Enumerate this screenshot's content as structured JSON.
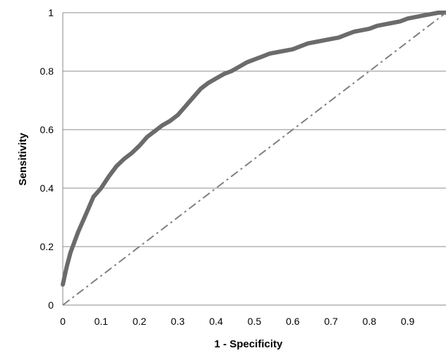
{
  "chart_data": {
    "type": "line",
    "title": "",
    "xlabel": "1 - Specificity",
    "ylabel": "Sensitivity",
    "xlim": [
      0,
      1
    ],
    "ylim": [
      0,
      1
    ],
    "x_ticks": [
      "0",
      "0.1",
      "0.2",
      "0.3",
      "0.4",
      "0.5",
      "0.6",
      "0.7",
      "0.8",
      "0.9"
    ],
    "y_ticks": [
      "0",
      "0.2",
      "0.4",
      "0.6",
      "0.8",
      "1"
    ],
    "grid": "horizontal",
    "legend": "none",
    "series": [
      {
        "style": "solid",
        "color": "#6b6b6b",
        "x": [
          0,
          0.01,
          0.02,
          0.04,
          0.06,
          0.08,
          0.1,
          0.12,
          0.14,
          0.16,
          0.18,
          0.2,
          0.22,
          0.24,
          0.26,
          0.28,
          0.3,
          0.32,
          0.34,
          0.36,
          0.38,
          0.4,
          0.42,
          0.44,
          0.46,
          0.48,
          0.5,
          0.52,
          0.54,
          0.56,
          0.6,
          0.62,
          0.64,
          0.66,
          0.7,
          0.72,
          0.74,
          0.76,
          0.78,
          0.8,
          0.82,
          0.84,
          0.86,
          0.88,
          0.9,
          0.92,
          0.94,
          0.96,
          0.98,
          1.0
        ],
        "y": [
          0.07,
          0.13,
          0.18,
          0.25,
          0.31,
          0.37,
          0.4,
          0.44,
          0.475,
          0.5,
          0.52,
          0.545,
          0.575,
          0.595,
          0.615,
          0.63,
          0.65,
          0.68,
          0.71,
          0.74,
          0.76,
          0.775,
          0.79,
          0.8,
          0.815,
          0.83,
          0.84,
          0.85,
          0.86,
          0.865,
          0.875,
          0.885,
          0.895,
          0.9,
          0.91,
          0.915,
          0.925,
          0.935,
          0.94,
          0.945,
          0.955,
          0.96,
          0.965,
          0.97,
          0.98,
          0.985,
          0.99,
          0.995,
          1.0,
          1.0
        ]
      },
      {
        "style": "dash-dot",
        "color": "#808080",
        "x": [
          0,
          1
        ],
        "y": [
          0,
          1
        ]
      }
    ]
  }
}
